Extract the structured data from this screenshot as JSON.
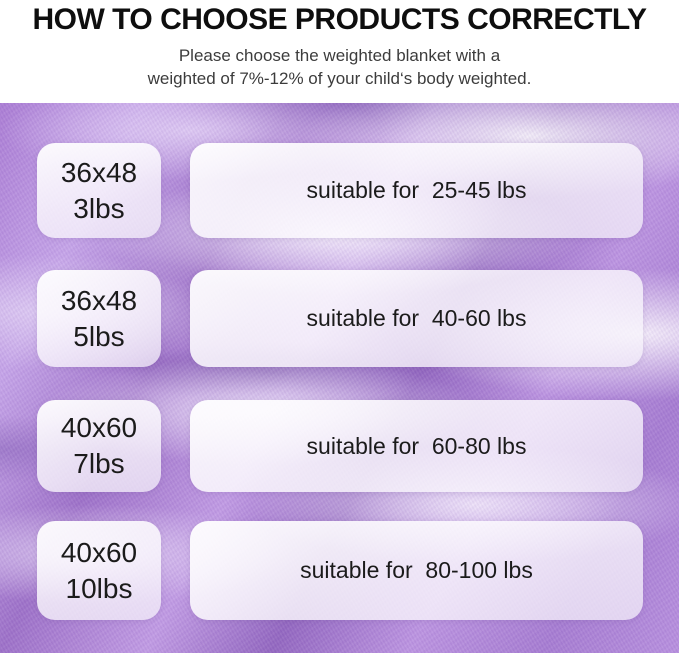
{
  "header": {
    "title": "HOW TO CHOOSE PRODUCTS CORRECTLY",
    "subtitle_line1": "Please choose the weighted blanket with a",
    "subtitle_line2": "weighted of 7%-12% of your child‘s body weighted."
  },
  "size_table": {
    "rows": [
      {
        "size": "36x48",
        "weight": "3lbs",
        "suitability": "suitable for  25-45 lbs"
      },
      {
        "size": "36x48",
        "weight": "5lbs",
        "suitability": "suitable for  40-60 lbs"
      },
      {
        "size": "40x60",
        "weight": "7lbs",
        "suitability": "suitable for  60-80 lbs"
      },
      {
        "size": "40x60",
        "weight": "10lbs",
        "suitability": "suitable for  80-100 lbs"
      }
    ]
  },
  "colors": {
    "title_text": "#0e0e0e",
    "subtitle_text": "#3c3c3c",
    "card_text": "#1b1b1b",
    "card_background": "#ffffff",
    "fabric_light": "#e9ddf7",
    "fabric_mid": "#b78fde",
    "fabric_dark": "#8f63bd"
  }
}
